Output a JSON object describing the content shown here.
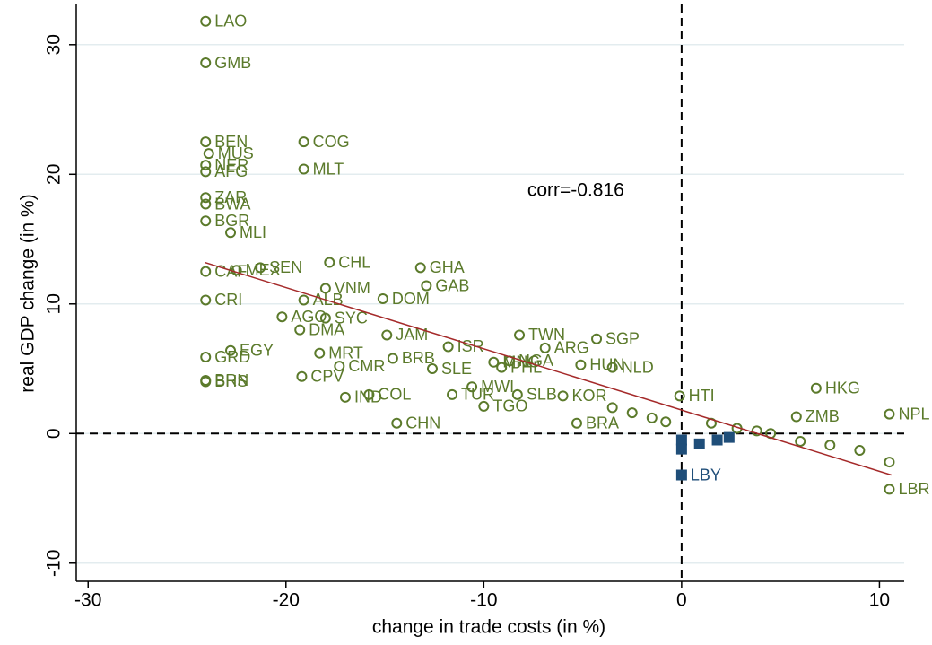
{
  "chart_data": {
    "type": "scatter",
    "x_label": "change in trade costs (in %)",
    "y_label": "real GDP change (in %)",
    "annotation": "corr=-0.816",
    "annotation_x": -7.8,
    "annotation_y": 18.7,
    "xlim": [
      -30.6,
      11.25
    ],
    "ylim": [
      -11.4,
      33.1
    ],
    "xticks": [
      -30,
      -20,
      -10,
      0,
      10
    ],
    "yticks": [
      -10,
      0,
      10,
      20,
      30
    ],
    "grid": true,
    "reference_lines": {
      "x": 0,
      "y": 0
    },
    "fit_line": {
      "color": "#a52a2a",
      "x": [
        -24.1,
        10.6
      ],
      "values": [
        13.2,
        -3.2
      ]
    },
    "series": [
      {
        "color": "#5b7a2b",
        "marker": "hollow-circle",
        "labels": [
          "LAO",
          "GMB",
          "BEN",
          "MUS",
          "NER",
          "AFG",
          "COG",
          "MLT",
          "ZAR",
          "BWA",
          "BGR",
          "MLI",
          "CHL",
          "GHA",
          "SEN",
          "MEX",
          "CAF",
          "GAB",
          "VNM",
          "DOM",
          "ALB",
          "CRI",
          "AGO",
          "SYC",
          "DMA",
          "JAM",
          "TWN",
          "SGP",
          "ISR",
          "ARG",
          "EGY",
          "MRT",
          "GRD",
          "BRB",
          "MNG",
          "NGA",
          "PHL",
          "CMR",
          "HUN",
          "NLD",
          "SLE",
          "CPV",
          "BRN",
          "BHS",
          "MWI",
          "COL",
          "IND",
          "TUR",
          "HTI",
          "CHN",
          "TGO",
          "HKG",
          "NPL",
          "ZMB",
          "BRA",
          "KOR",
          "SLB",
          "LBR",
          null,
          null,
          null,
          null,
          null,
          null,
          null,
          null,
          null,
          null,
          null,
          null
        ],
        "x": [
          -24.06,
          -24.06,
          -24.06,
          -23.9,
          -24.06,
          -24.06,
          -19.1,
          -19.1,
          -24.06,
          -24.06,
          -24.06,
          -22.8,
          -17.8,
          -13.2,
          -21.3,
          -22.5,
          -24.06,
          -12.9,
          -18.0,
          -15.1,
          -19.1,
          -24.06,
          -20.2,
          -18.0,
          -19.3,
          -14.9,
          -8.2,
          -4.3,
          -11.8,
          -6.9,
          -22.8,
          -18.3,
          -24.06,
          -14.6,
          -9.5,
          -8.7,
          -9.1,
          -17.3,
          -5.1,
          -3.5,
          -12.6,
          -19.2,
          -24.06,
          -24.06,
          -10.6,
          -15.8,
          -17.0,
          -11.6,
          -0.1,
          -14.4,
          -10.0,
          6.8,
          10.5,
          5.8,
          -5.3,
          -6.0,
          -8.3,
          10.5,
          -3.5,
          -2.5,
          -1.5,
          -0.8,
          1.5,
          2.8,
          3.8,
          4.5,
          6.0,
          7.5,
          9.0,
          10.5
        ],
        "values": [
          31.8,
          28.6,
          22.5,
          21.6,
          20.7,
          20.2,
          22.5,
          20.4,
          18.2,
          17.7,
          16.4,
          15.5,
          13.2,
          12.8,
          12.8,
          12.6,
          12.5,
          11.4,
          11.2,
          10.4,
          10.3,
          10.3,
          9.0,
          8.9,
          8.0,
          7.6,
          7.6,
          7.3,
          6.7,
          6.6,
          6.4,
          6.2,
          5.9,
          5.8,
          5.5,
          5.6,
          5.1,
          5.2,
          5.3,
          5.1,
          5.0,
          4.4,
          4.1,
          4.0,
          3.6,
          3.0,
          2.8,
          3.0,
          2.9,
          0.8,
          2.1,
          3.5,
          1.5,
          1.3,
          0.8,
          2.9,
          3.0,
          -4.3,
          2.0,
          1.6,
          1.2,
          0.9,
          0.8,
          0.4,
          0.2,
          0.0,
          -0.6,
          -0.9,
          -1.3,
          -2.2
        ]
      },
      {
        "color": "#1f4e79",
        "marker": "filled-square",
        "labels": [
          "LBY",
          null,
          null,
          null,
          null,
          null
        ],
        "x": [
          0.0,
          0.0,
          0.0,
          0.9,
          1.8,
          2.4
        ],
        "values": [
          -3.2,
          -0.5,
          -1.2,
          -0.8,
          -0.5,
          -0.3
        ]
      }
    ]
  }
}
